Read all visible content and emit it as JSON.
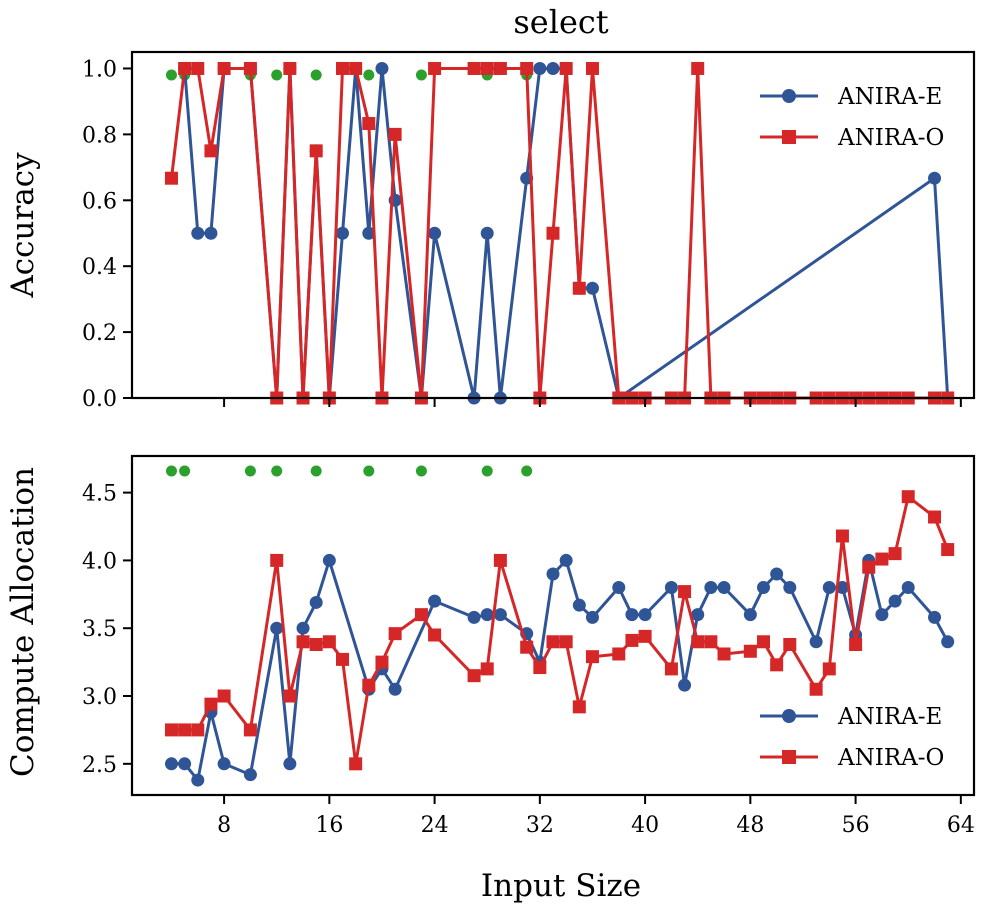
{
  "chart_data": {
    "type": "line",
    "title": "select",
    "xlabel": "Input Size",
    "colors": {
      "anira_e": "#2f5597",
      "anira_o": "#d62728",
      "marker_green": "#2ca02c"
    },
    "panels": [
      {
        "ylabel": "Accuracy",
        "xlim": [
          1,
          65
        ],
        "ylim": [
          0,
          1.05
        ],
        "xticks": [
          8,
          16,
          24,
          32,
          40,
          48,
          56,
          64
        ],
        "show_xticklabels": false,
        "yticks": [
          0.0,
          0.2,
          0.4,
          0.6,
          0.8,
          1.0
        ],
        "ytick_labels": [
          "0.0",
          "0.2",
          "0.4",
          "0.6",
          "0.8",
          "1.0"
        ],
        "legend": [
          "ANIRA-E",
          "ANIRA-O"
        ],
        "legend_loc": "upper right",
        "green_markers_x": [
          4,
          5,
          10,
          12,
          15,
          19,
          23,
          28,
          31
        ],
        "series": [
          {
            "name": "ANIRA-E",
            "color": "#2f5597",
            "marker": "circle",
            "x": [
              5,
              6,
              7,
              8,
              10,
              12,
              13,
              14,
              15,
              16,
              17,
              18,
              19,
              20,
              21,
              23,
              24,
              27,
              28,
              29,
              31,
              32,
              33,
              34,
              35,
              36,
              38,
              62,
              63
            ],
            "y": [
              1.0,
              0.5,
              0.5,
              1.0,
              1.0,
              0.0,
              1.0,
              0.0,
              0.75,
              0.0,
              0.5,
              1.0,
              0.5,
              1.0,
              0.6,
              0.0,
              0.5,
              0.0,
              0.5,
              0.0,
              0.667,
              1.0,
              1.0,
              1.0,
              0.333,
              0.333,
              0.0,
              0.667,
              0.0
            ]
          },
          {
            "name": "ANIRA-O",
            "color": "#d62728",
            "marker": "square",
            "x": [
              4,
              5,
              6,
              7,
              8,
              10,
              12,
              13,
              14,
              15,
              16,
              17,
              18,
              19,
              20,
              21,
              23,
              24,
              27,
              28,
              29,
              31,
              32,
              33,
              34,
              35,
              36,
              38,
              39,
              40,
              42,
              43,
              44,
              45,
              46,
              48,
              49,
              50,
              51,
              53,
              54,
              55,
              56,
              57,
              58,
              59,
              60,
              62,
              63
            ],
            "y": [
              0.667,
              1.0,
              1.0,
              0.75,
              1.0,
              1.0,
              0.0,
              1.0,
              0.0,
              0.75,
              0.0,
              1.0,
              1.0,
              0.833,
              0.0,
              0.8,
              0.0,
              1.0,
              1.0,
              1.0,
              1.0,
              1.0,
              0.0,
              0.5,
              1.0,
              0.333,
              1.0,
              0.0,
              0.0,
              0.0,
              0.0,
              0.0,
              1.0,
              0.0,
              0.0,
              0.0,
              0.0,
              0.0,
              0.0,
              0.0,
              0.0,
              0.0,
              0.0,
              0.0,
              0.0,
              0.0,
              0.0,
              0.0,
              0.0
            ]
          }
        ]
      },
      {
        "ylabel": "Compute Allocation",
        "xlim": [
          1,
          65
        ],
        "ylim": [
          2.27,
          4.77
        ],
        "xticks": [
          8,
          16,
          24,
          32,
          40,
          48,
          56,
          64
        ],
        "xtick_labels": [
          "8",
          "16",
          "24",
          "32",
          "40",
          "48",
          "56",
          "64"
        ],
        "show_xticklabels": true,
        "yticks": [
          2.5,
          3.0,
          3.5,
          4.0,
          4.5
        ],
        "ytick_labels": [
          "2.5",
          "3.0",
          "3.5",
          "4.0",
          "4.5"
        ],
        "legend": [
          "ANIRA-E",
          "ANIRA-O"
        ],
        "legend_loc": "lower right",
        "green_markers_x": [
          4,
          5,
          10,
          12,
          15,
          19,
          23,
          28,
          31
        ],
        "series": [
          {
            "name": "ANIRA-E",
            "color": "#2f5597",
            "marker": "circle",
            "x": [
              4,
              5,
              6,
              7,
              8,
              10,
              12,
              13,
              14,
              15,
              16,
              19,
              20,
              21,
              24,
              27,
              28,
              29,
              31,
              32,
              33,
              34,
              35,
              36,
              38,
              39,
              40,
              42,
              43,
              44,
              45,
              46,
              48,
              49,
              50,
              51,
              53,
              54,
              55,
              56,
              57,
              58,
              59,
              60,
              62,
              63
            ],
            "y": [
              2.5,
              2.5,
              2.38,
              2.88,
              2.5,
              2.42,
              3.5,
              2.5,
              3.5,
              3.69,
              4.0,
              3.05,
              3.2,
              3.05,
              3.7,
              3.58,
              3.6,
              3.6,
              3.46,
              3.25,
              3.9,
              4.0,
              3.67,
              3.58,
              3.8,
              3.6,
              3.6,
              3.8,
              3.08,
              3.6,
              3.8,
              3.8,
              3.6,
              3.8,
              3.9,
              3.8,
              3.4,
              3.8,
              3.8,
              3.45,
              4.0,
              3.6,
              3.7,
              3.8,
              3.58,
              3.4
            ]
          },
          {
            "name": "ANIRA-O",
            "color": "#d62728",
            "marker": "square",
            "x": [
              4,
              5,
              6,
              7,
              8,
              10,
              12,
              13,
              14,
              15,
              16,
              17,
              18,
              19,
              20,
              21,
              23,
              24,
              27,
              28,
              29,
              31,
              32,
              33,
              34,
              35,
              36,
              38,
              39,
              40,
              42,
              43,
              44,
              45,
              46,
              48,
              49,
              50,
              51,
              53,
              54,
              55,
              56,
              57,
              58,
              59,
              60,
              62,
              63
            ],
            "y": [
              2.75,
              2.75,
              2.75,
              2.94,
              3.0,
              2.75,
              4.0,
              3.0,
              3.4,
              3.38,
              3.4,
              3.27,
              2.5,
              3.08,
              3.25,
              3.46,
              3.6,
              3.45,
              3.15,
              3.2,
              4.0,
              3.36,
              3.21,
              3.4,
              3.4,
              2.92,
              3.29,
              3.31,
              3.41,
              3.44,
              3.2,
              3.77,
              3.4,
              3.4,
              3.31,
              3.33,
              3.4,
              3.23,
              3.38,
              3.05,
              3.2,
              4.18,
              3.38,
              3.95,
              4.01,
              4.05,
              4.47,
              4.32,
              4.08
            ]
          }
        ]
      }
    ]
  }
}
